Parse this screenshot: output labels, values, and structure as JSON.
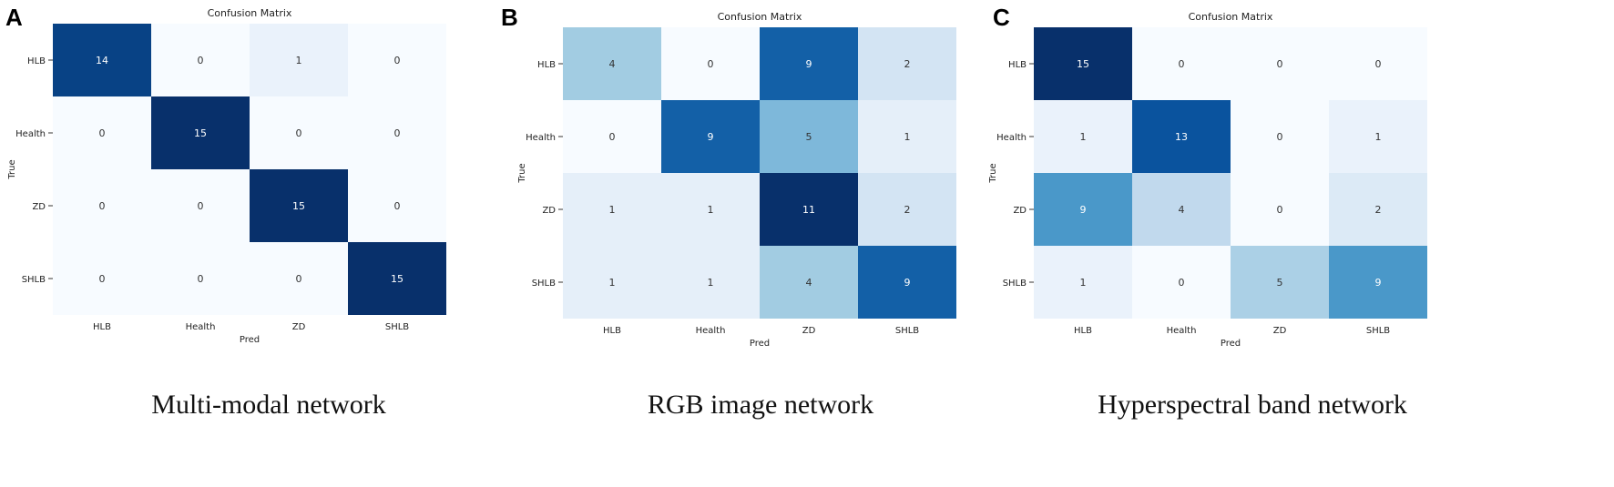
{
  "chart_data": [
    {
      "type": "heatmap",
      "panel": "A",
      "title": "Confusion Matrix",
      "xlabel": "Pred",
      "ylabel": "True",
      "x_categories": [
        "HLB",
        "Health",
        "ZD",
        "SHLB"
      ],
      "y_categories": [
        "HLB",
        "Health",
        "ZD",
        "SHLB"
      ],
      "values": [
        [
          14,
          0,
          1,
          0
        ],
        [
          0,
          15,
          0,
          0
        ],
        [
          0,
          0,
          15,
          0
        ],
        [
          0,
          0,
          0,
          15
        ]
      ],
      "vmax": 15,
      "colormap": "Blues",
      "caption": "Multi-modal network"
    },
    {
      "type": "heatmap",
      "panel": "B",
      "title": "Confusion Matrix",
      "xlabel": "Pred",
      "ylabel": "True",
      "x_categories": [
        "HLB",
        "Health",
        "ZD",
        "SHLB"
      ],
      "y_categories": [
        "HLB",
        "Health",
        "ZD",
        "SHLB"
      ],
      "values": [
        [
          4,
          0,
          9,
          2
        ],
        [
          0,
          9,
          5,
          1
        ],
        [
          1,
          1,
          11,
          2
        ],
        [
          1,
          1,
          4,
          9
        ]
      ],
      "vmax": 11,
      "colormap": "Blues",
      "caption": "RGB image network"
    },
    {
      "type": "heatmap",
      "panel": "C",
      "title": "Confusion Matrix",
      "xlabel": "Pred",
      "ylabel": "True",
      "x_categories": [
        "HLB",
        "Health",
        "ZD",
        "SHLB"
      ],
      "y_categories": [
        "HLB",
        "Health",
        "ZD",
        "SHLB"
      ],
      "values": [
        [
          15,
          0,
          0,
          0
        ],
        [
          1,
          13,
          0,
          1
        ],
        [
          9,
          4,
          0,
          2
        ],
        [
          1,
          0,
          5,
          9
        ]
      ],
      "vmax": 15,
      "colormap": "Blues",
      "caption": "Hyperspectral band network"
    }
  ]
}
